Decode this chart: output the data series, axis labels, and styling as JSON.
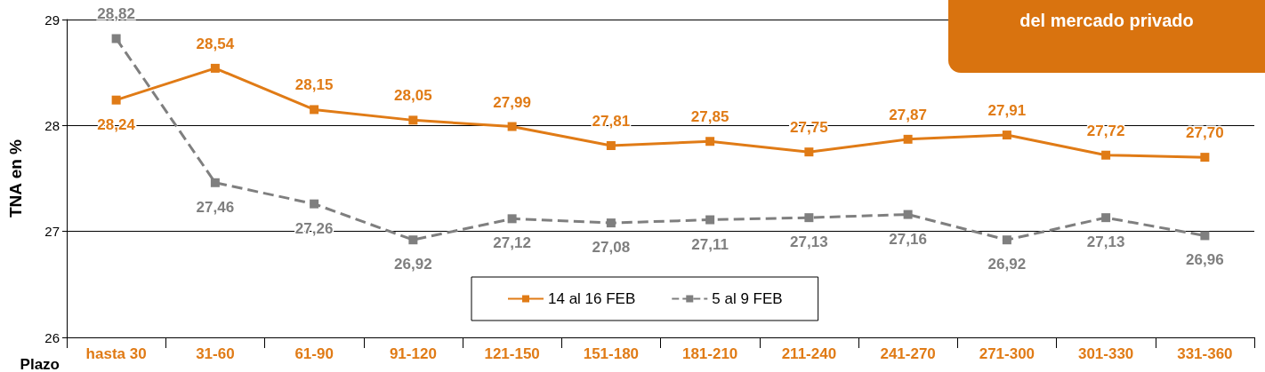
{
  "chart_data": {
    "type": "line",
    "xlabel": "Plazo",
    "ylabel": "TNA en %",
    "annotations": [
      "del mercado privado"
    ],
    "categories": [
      "hasta 30",
      "31-60",
      "61-90",
      "91-120",
      "121-150",
      "151-180",
      "181-210",
      "211-240",
      "241-270",
      "271-300",
      "301-330",
      "331-360"
    ],
    "series": [
      {
        "name": "14 al 16 FEB",
        "color": "#e07b16",
        "line_style": "solid",
        "values": [
          28.24,
          28.54,
          28.15,
          28.05,
          27.99,
          27.81,
          27.85,
          27.75,
          27.87,
          27.91,
          27.72,
          27.7
        ],
        "value_labels": [
          "28,24",
          "28,54",
          "28,15",
          "28,05",
          "27,99",
          "27,81",
          "27,85",
          "27,75",
          "27,87",
          "27,91",
          "27,72",
          "27,70"
        ]
      },
      {
        "name": "5 al 9 FEB",
        "color": "#7f7f7f",
        "line_style": "dashed",
        "values": [
          28.82,
          27.46,
          27.26,
          26.92,
          27.12,
          27.08,
          27.11,
          27.13,
          27.16,
          26.92,
          27.13,
          26.96
        ],
        "value_labels": [
          "28,82",
          "27,46",
          "27,26",
          "26,92",
          "27,12",
          "27,08",
          "27,11",
          "27,13",
          "27,16",
          "26,92",
          "27,13",
          "26,96"
        ]
      }
    ],
    "ylim": [
      26,
      29
    ],
    "yticks": [
      26,
      27,
      28,
      29
    ],
    "grid": "y",
    "legend": "bottom",
    "marker": "square"
  }
}
